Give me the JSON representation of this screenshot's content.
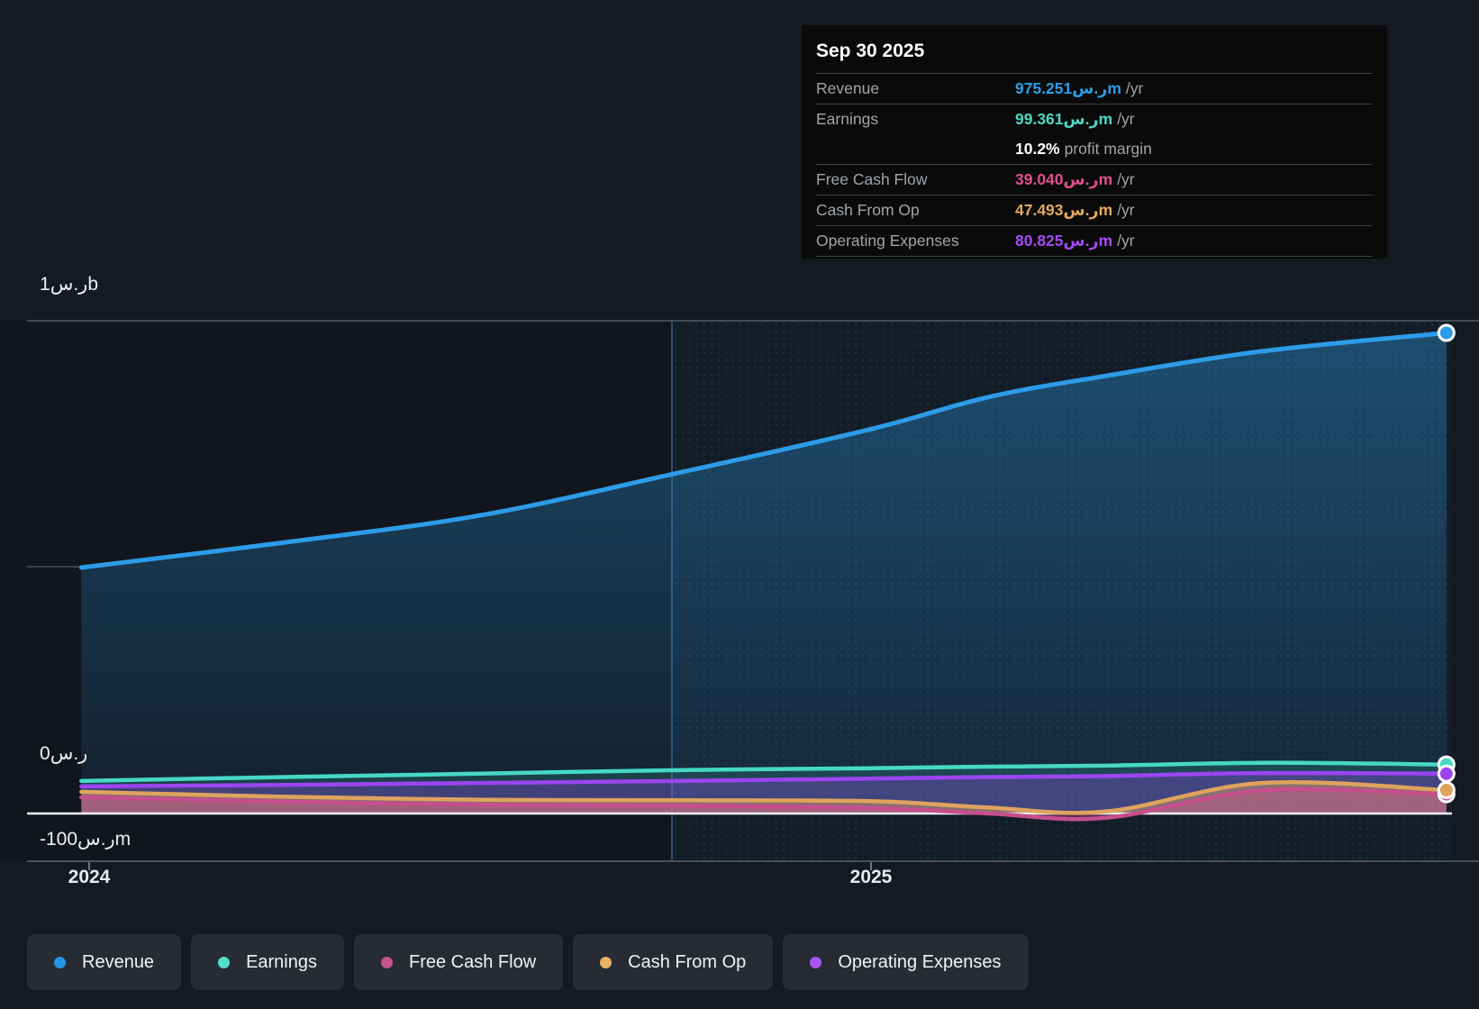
{
  "tooltip": {
    "date": "Sep 30 2025",
    "rows": [
      {
        "label": "Revenue",
        "value": "975.251ر.سm",
        "suffix": "/yr",
        "color": "#2D9CE8",
        "sep": true
      },
      {
        "label": "Earnings",
        "value": "99.361ر.سm",
        "suffix": "/yr",
        "color": "#4FD6C5",
        "sep": true
      },
      {
        "label": "",
        "value": "10.2%",
        "suffix": "profit margin",
        "color": "#FFFFFF",
        "sep": false
      },
      {
        "label": "Free Cash Flow",
        "value": "39.040ر.سm",
        "suffix": "/yr",
        "color": "#E0508E",
        "sep": true
      },
      {
        "label": "Cash From Op",
        "value": "47.493ر.سm",
        "suffix": "/yr",
        "color": "#E2A95D",
        "sep": true
      },
      {
        "label": "Operating Expenses",
        "value": "80.825ر.سm",
        "suffix": "/yr",
        "color": "#A44AF3",
        "sep": true
      }
    ]
  },
  "axis": {
    "y_top": "1ر.سb",
    "y_zero": "0ر.س",
    "y_neg": "-100ر.سm",
    "x_ticks": [
      "2024",
      "2025"
    ]
  },
  "legend": [
    {
      "label": "Revenue",
      "color": "#2196E8"
    },
    {
      "label": "Earnings",
      "color": "#52DEC8"
    },
    {
      "label": "Free Cash Flow",
      "color": "#C4548F"
    },
    {
      "label": "Cash From Op",
      "color": "#E8B269"
    },
    {
      "label": "Operating Expenses",
      "color": "#A855F7"
    }
  ],
  "chart_data": {
    "type": "line",
    "currency": "SAR (ر.س)",
    "units": "millions",
    "x": [
      2023.99,
      2024.25,
      2024.5,
      2024.75,
      2025.0,
      2025.15,
      2025.3,
      2025.5,
      2025.736
    ],
    "series": [
      {
        "name": "Revenue",
        "color": "#2D9CE8",
        "values": [
          499,
          550,
          605,
          690,
          780,
          845,
          888,
          938,
          975.251
        ]
      },
      {
        "name": "Earnings",
        "color": "#45D8C5",
        "values": [
          66,
          74,
          81,
          88,
          92,
          95,
          97,
          103,
          99.361
        ]
      },
      {
        "name": "Operating Expenses",
        "color": "#9B45F0",
        "values": [
          55,
          58,
          62,
          66,
          71,
          74,
          76,
          82,
          80.825
        ]
      },
      {
        "name": "Free Cash Flow",
        "color": "#C74E8E",
        "values": [
          33,
          24,
          18,
          16,
          11,
          0,
          -9,
          47,
          39.04
        ]
      },
      {
        "name": "Cash From Op",
        "color": "#DFA35E",
        "values": [
          44,
          34,
          28,
          27,
          25,
          12,
          4,
          62,
          47.493
        ]
      }
    ],
    "ylim": [
      -100,
      1000
    ],
    "xlim": [
      2023.99,
      2025.74
    ],
    "gridlines_y": [
      1000,
      500,
      0,
      -100
    ],
    "forecast_divider_x": 2024.745,
    "legend_position": "bottom",
    "last_point_label": "Sep 30 2025"
  }
}
